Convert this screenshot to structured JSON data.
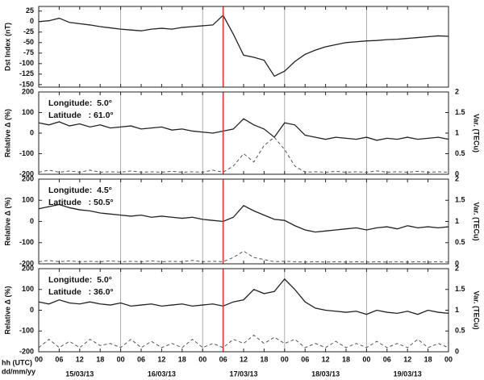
{
  "chart_data": [
    {
      "type": "line",
      "ylabel": "Dst Index (nT)",
      "x": [
        0,
        3,
        6,
        9,
        12,
        15,
        18,
        21,
        24,
        27,
        30,
        33,
        36,
        39,
        42,
        45,
        48,
        51,
        54,
        57,
        60,
        63,
        66,
        69,
        72,
        75,
        78,
        81,
        84,
        87,
        90,
        93,
        96,
        99,
        102,
        105,
        108,
        111,
        114,
        117,
        120
      ],
      "series": [
        {
          "color": "#222222",
          "values": [
            0,
            2,
            8,
            -2,
            -5,
            -8,
            -12,
            -15,
            -18,
            -20,
            -22,
            -18,
            -16,
            -18,
            -14,
            -12,
            -10,
            -8,
            15,
            -30,
            -80,
            -85,
            -92,
            -130,
            -118,
            -95,
            -78,
            -68,
            -60,
            -55,
            -50,
            -48,
            -46,
            -45,
            -43,
            -42,
            -40,
            -38,
            -36,
            -34,
            -35
          ]
        }
      ],
      "xlim": [
        0,
        120
      ],
      "xticks": [
        0,
        6,
        12,
        18,
        24,
        30,
        36,
        42,
        48,
        54,
        60,
        66,
        72,
        78,
        84,
        90,
        96,
        102,
        108,
        114,
        120
      ],
      "ylim": [
        -156,
        36
      ],
      "yticks": [
        25,
        0,
        -25,
        -50,
        -75,
        -100,
        -125,
        -150
      ],
      "vline": {
        "x": 54,
        "color": "#e03030"
      }
    },
    {
      "type": "line",
      "ylabel": "Relative Δ (%)",
      "y2label": "Var. (TECu)",
      "annotations": [
        "Longitude:  5.0°",
        "Latitude   : 61.0°"
      ],
      "x": [
        0,
        3,
        6,
        9,
        12,
        15,
        18,
        21,
        24,
        27,
        30,
        33,
        36,
        39,
        42,
        45,
        48,
        51,
        54,
        57,
        60,
        63,
        66,
        69,
        72,
        75,
        78,
        81,
        84,
        87,
        90,
        93,
        96,
        99,
        102,
        105,
        108,
        111,
        114,
        117,
        120
      ],
      "series": [
        {
          "color": "#222222",
          "values": [
            50,
            40,
            55,
            35,
            45,
            30,
            40,
            25,
            30,
            35,
            20,
            25,
            30,
            15,
            20,
            10,
            5,
            0,
            10,
            20,
            70,
            40,
            20,
            -20,
            50,
            40,
            -10,
            -20,
            -30,
            -20,
            -25,
            -30,
            -20,
            -35,
            -25,
            -30,
            -20,
            -30,
            -25,
            -20,
            -30
          ]
        },
        {
          "color": "#555555",
          "dash": true,
          "axis": "y2",
          "values": [
            0.05,
            0.1,
            0.05,
            0.08,
            0.05,
            0.1,
            0.05,
            0.06,
            0.05,
            0.08,
            0.05,
            0.06,
            0.05,
            0.07,
            0.05,
            0.06,
            0.05,
            0.1,
            0.05,
            0.2,
            0.5,
            0.3,
            0.7,
            0.9,
            0.6,
            0.2,
            0.05,
            0.06,
            0.05,
            0.07,
            0.05,
            0.06,
            0.05,
            0.08,
            0.05,
            0.06,
            0.05,
            0.07,
            0.05,
            0.06,
            0.05
          ]
        }
      ],
      "xlim": [
        0,
        120
      ],
      "xticks": [
        0,
        6,
        12,
        18,
        24,
        30,
        36,
        42,
        48,
        54,
        60,
        66,
        72,
        78,
        84,
        90,
        96,
        102,
        108,
        114,
        120
      ],
      "ylim": [
        -200,
        200
      ],
      "yticks": [
        200,
        100,
        0,
        -100,
        -200
      ],
      "y2lim": [
        0,
        2
      ],
      "y2ticks": [
        2,
        1.5,
        1,
        0.5,
        0
      ],
      "vline": {
        "x": 54,
        "color": "#e03030"
      }
    },
    {
      "type": "line",
      "ylabel": "Relative Δ (%)",
      "y2label": "Var. (TECu)",
      "annotations": [
        "Longitude:  4.5°",
        "Latitude   : 50.5°"
      ],
      "x": [
        0,
        3,
        6,
        9,
        12,
        15,
        18,
        21,
        24,
        27,
        30,
        33,
        36,
        39,
        42,
        45,
        48,
        51,
        54,
        57,
        60,
        63,
        66,
        69,
        72,
        75,
        78,
        81,
        84,
        87,
        90,
        93,
        96,
        99,
        102,
        105,
        108,
        111,
        114,
        117,
        120
      ],
      "series": [
        {
          "color": "#222222",
          "values": [
            60,
            70,
            80,
            65,
            55,
            50,
            40,
            35,
            30,
            25,
            30,
            20,
            25,
            20,
            15,
            20,
            10,
            5,
            0,
            20,
            75,
            50,
            30,
            10,
            5,
            -20,
            -40,
            -50,
            -45,
            -40,
            -35,
            -30,
            -40,
            -30,
            -25,
            -35,
            -20,
            -30,
            -25,
            -30,
            -25
          ]
        },
        {
          "color": "#555555",
          "dash": true,
          "axis": "y2",
          "values": [
            0.05,
            0.08,
            0.05,
            0.07,
            0.05,
            0.06,
            0.05,
            0.07,
            0.05,
            0.06,
            0.05,
            0.07,
            0.05,
            0.06,
            0.05,
            0.08,
            0.05,
            0.06,
            0.05,
            0.15,
            0.3,
            0.15,
            0.1,
            0.05,
            0.06,
            0.05,
            0.04,
            0.05,
            0.04,
            0.05,
            0.04,
            0.05,
            0.04,
            0.05,
            0.04,
            0.05,
            0.04,
            0.05,
            0.04,
            0.05,
            0.04
          ]
        }
      ],
      "xlim": [
        0,
        120
      ],
      "xticks": [
        0,
        6,
        12,
        18,
        24,
        30,
        36,
        42,
        48,
        54,
        60,
        66,
        72,
        78,
        84,
        90,
        96,
        102,
        108,
        114,
        120
      ],
      "ylim": [
        -200,
        200
      ],
      "yticks": [
        200,
        100,
        0,
        -100,
        -200
      ],
      "y2lim": [
        0,
        2
      ],
      "y2ticks": [
        2,
        1.5,
        1,
        0.5,
        0
      ],
      "vline": {
        "x": 54,
        "color": "#e03030"
      }
    },
    {
      "type": "line",
      "ylabel": "Relative Δ (%)",
      "y2label": "Var. (TECu)",
      "xlabel": "hh (UTC)",
      "xlabel2": "dd/mm/yy",
      "annotations": [
        "Longitude:  5.0°",
        "Latitude   : 36.0°"
      ],
      "x": [
        0,
        3,
        6,
        9,
        12,
        15,
        18,
        21,
        24,
        27,
        30,
        33,
        36,
        39,
        42,
        45,
        48,
        51,
        54,
        57,
        60,
        63,
        66,
        69,
        72,
        75,
        78,
        81,
        84,
        87,
        90,
        93,
        96,
        99,
        102,
        105,
        108,
        111,
        114,
        117,
        120
      ],
      "series": [
        {
          "color": "#222222",
          "values": [
            40,
            30,
            50,
            35,
            30,
            40,
            30,
            25,
            35,
            20,
            25,
            30,
            20,
            25,
            30,
            20,
            25,
            30,
            20,
            40,
            50,
            100,
            80,
            90,
            150,
            100,
            40,
            10,
            0,
            -5,
            -10,
            -5,
            -20,
            0,
            -10,
            -15,
            -5,
            -20,
            0,
            -10,
            -15
          ]
        },
        {
          "color": "#555555",
          "dash": true,
          "axis": "y2",
          "values": [
            0.1,
            0.3,
            0.1,
            0.25,
            0.1,
            0.3,
            0.15,
            0.2,
            0.1,
            0.3,
            0.1,
            0.25,
            0.1,
            0.2,
            0.1,
            0.3,
            0.1,
            0.2,
            0.1,
            0.3,
            0.2,
            0.4,
            0.2,
            0.35,
            0.2,
            0.3,
            0.1,
            0.2,
            0.1,
            0.25,
            0.1,
            0.2,
            0.1,
            0.25,
            0.1,
            0.2,
            0.1,
            0.3,
            0.1,
            0.2,
            0.1
          ]
        }
      ],
      "xlim": [
        0,
        120
      ],
      "xticks": [
        {
          "value": 0,
          "label": "00"
        },
        {
          "value": 6,
          "label": "06"
        },
        {
          "value": 12,
          "label": "12"
        },
        {
          "value": 18,
          "label": "18"
        },
        {
          "value": 24,
          "label": "00"
        },
        {
          "value": 30,
          "label": "06"
        },
        {
          "value": 36,
          "label": "12"
        },
        {
          "value": 42,
          "label": "18"
        },
        {
          "value": 48,
          "label": "00"
        },
        {
          "value": 54,
          "label": "06"
        },
        {
          "value": 60,
          "label": "12"
        },
        {
          "value": 66,
          "label": "18"
        },
        {
          "value": 72,
          "label": "00"
        },
        {
          "value": 78,
          "label": "06"
        },
        {
          "value": 84,
          "label": "12"
        },
        {
          "value": 90,
          "label": "18"
        },
        {
          "value": 96,
          "label": "00"
        },
        {
          "value": 102,
          "label": "06"
        },
        {
          "value": 108,
          "label": "12"
        },
        {
          "value": 114,
          "label": "18"
        },
        {
          "value": 120,
          "label": "00"
        }
      ],
      "date_labels": [
        {
          "value": 12,
          "label": "15/03/13"
        },
        {
          "value": 36,
          "label": "16/03/13"
        },
        {
          "value": 60,
          "label": "17/03/13"
        },
        {
          "value": 84,
          "label": "18/03/13"
        },
        {
          "value": 108,
          "label": "19/03/13"
        }
      ],
      "ylim": [
        -200,
        200
      ],
      "yticks": [
        200,
        100,
        0,
        -100,
        -200
      ],
      "y2lim": [
        0,
        2
      ],
      "y2ticks": [
        2,
        1.5,
        1,
        0.5,
        0
      ],
      "vline": {
        "x": 54,
        "color": "#e03030"
      }
    }
  ]
}
